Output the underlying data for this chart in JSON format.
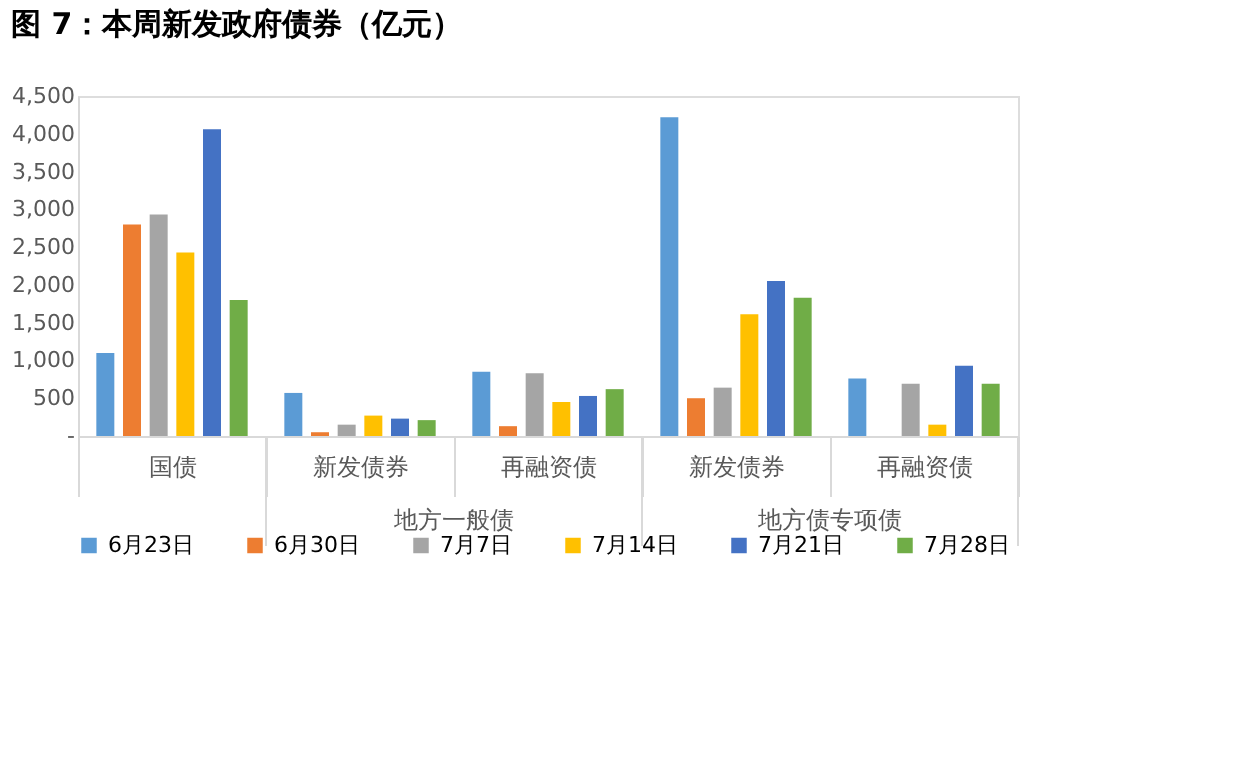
{
  "chart_data": {
    "type": "bar",
    "title": "图 7：本周新发政府债券（亿元）",
    "categories": [
      "国债",
      "新发债券",
      "再融资债",
      "新发债券",
      "再融资债"
    ],
    "annotations": [
      "地方一般债",
      "地方债专项债"
    ],
    "series": [
      {
        "name": "6月23日",
        "color": "#5b9bd5",
        "values": [
          1100,
          570,
          850,
          4220,
          760
        ]
      },
      {
        "name": "6月30日",
        "color": "#ed7d31",
        "values": [
          2800,
          50,
          130,
          500,
          0
        ]
      },
      {
        "name": "7月7日",
        "color": "#a5a5a5",
        "values": [
          2930,
          150,
          830,
          640,
          690
        ]
      },
      {
        "name": "7月14日",
        "color": "#ffc000",
        "values": [
          2430,
          270,
          450,
          1610,
          150
        ]
      },
      {
        "name": "7月21日",
        "color": "#4472c4",
        "values": [
          4060,
          230,
          530,
          2050,
          930
        ]
      },
      {
        "name": "7月28日",
        "color": "#70ad47",
        "values": [
          1800,
          210,
          620,
          1830,
          690
        ]
      }
    ],
    "ylim": [
      0,
      4500
    ],
    "yticks": [
      {
        "value": 0,
        "label": "-"
      },
      500,
      {
        "value": 1000,
        "label": "1,000"
      },
      {
        "value": 1500,
        "label": "1,500"
      },
      {
        "value": 2000,
        "label": "2,000"
      },
      {
        "value": 2500,
        "label": "2,500"
      },
      {
        "value": 3000,
        "label": "3,000"
      },
      {
        "value": 3500,
        "label": "3,500"
      },
      {
        "value": 4000,
        "label": "4,000"
      },
      {
        "value": 4500,
        "label": "4,500"
      }
    ],
    "grid": false,
    "legend": "bottom"
  }
}
